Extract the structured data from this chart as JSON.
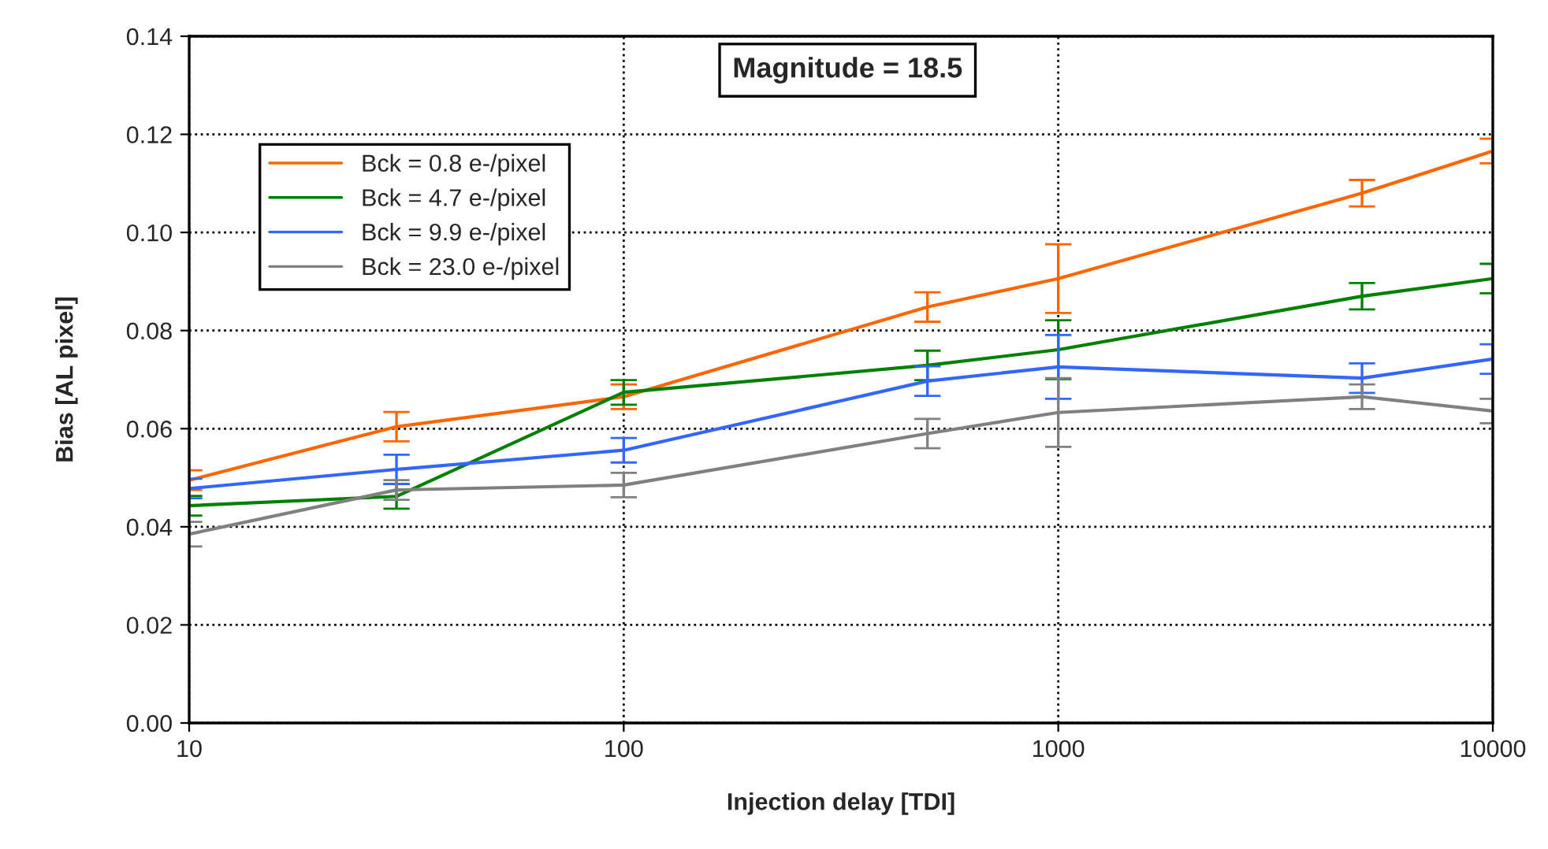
{
  "chart_data": {
    "type": "line",
    "title": "Magnitude = 18.5",
    "xlabel": "Injection delay [TDI]",
    "ylabel": "Bias [AL pixel]",
    "x": [
      10,
      30,
      100,
      500,
      1000,
      5000,
      10000
    ],
    "series": [
      {
        "name": "Bck = 0.8 e-/pixel",
        "color": "#ff6600",
        "values": [
          0.0495,
          0.0604,
          0.0665,
          0.0848,
          0.0906,
          0.108,
          0.1166
        ],
        "errors": [
          0.002,
          0.003,
          0.0025,
          0.003,
          0.007,
          0.0027,
          0.0025
        ]
      },
      {
        "name": "Bck = 4.7 e-/pixel",
        "color": "#008000",
        "values": [
          0.0443,
          0.0462,
          0.0674,
          0.0729,
          0.0761,
          0.087,
          0.0906
        ],
        "errors": [
          0.002,
          0.0025,
          0.0025,
          0.003,
          0.006,
          0.0027,
          0.003
        ]
      },
      {
        "name": "Bck = 9.9 e-/pixel",
        "color": "#3366ff",
        "values": [
          0.0478,
          0.0517,
          0.0556,
          0.0697,
          0.0726,
          0.0703,
          0.0742
        ],
        "errors": [
          0.002,
          0.003,
          0.0025,
          0.003,
          0.0065,
          0.003,
          0.003
        ]
      },
      {
        "name": "Bck = 23.0 e-/pixel",
        "color": "#808080",
        "values": [
          0.0385,
          0.0475,
          0.0485,
          0.059,
          0.0633,
          0.0665,
          0.0636
        ],
        "errors": [
          0.0025,
          0.002,
          0.0025,
          0.003,
          0.007,
          0.0025,
          0.0025
        ]
      }
    ],
    "log": "x",
    "xlim": [
      10,
      10000
    ],
    "xticks": [
      10,
      100,
      1000,
      10000
    ],
    "ylim": [
      0,
      0.14
    ],
    "yticks": [
      {
        "value": 0,
        "label": "0.00"
      },
      {
        "value": 0.02,
        "label": "0.02"
      },
      {
        "value": 0.04,
        "label": "0.04"
      },
      {
        "value": 0.06,
        "label": "0.06"
      },
      {
        "value": 0.08,
        "label": "0.08"
      },
      {
        "value": 0.1,
        "label": "0.10"
      },
      {
        "value": 0.12,
        "label": "0.12"
      },
      {
        "value": 0.14,
        "label": "0.14"
      }
    ],
    "grid": true,
    "legend": "top left",
    "marker": "none",
    "line_style": "solid"
  }
}
